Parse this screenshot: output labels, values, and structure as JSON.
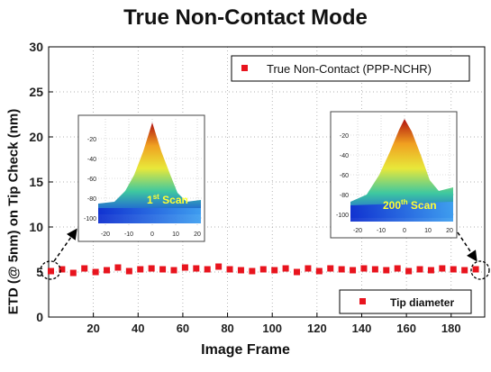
{
  "chart_data": {
    "type": "scatter",
    "title": "True Non-Contact Mode",
    "xlabel": "Image Frame",
    "ylabel": "ETD (@ 5nm) on Tip Check (nm)",
    "xlim": [
      0,
      195
    ],
    "ylim": [
      0,
      30
    ],
    "xticks": [
      20,
      40,
      60,
      80,
      100,
      120,
      140,
      160,
      180
    ],
    "yticks": [
      0,
      5,
      10,
      15,
      20,
      25,
      30
    ],
    "grid": true,
    "top_legend": "True Non-Contact (PPP-NCHR)",
    "series": [
      {
        "name": "Tip diameter",
        "color": "#e8141e",
        "x": [
          1,
          6,
          11,
          16,
          21,
          26,
          31,
          36,
          41,
          46,
          51,
          56,
          61,
          66,
          71,
          76,
          81,
          86,
          91,
          96,
          101,
          106,
          111,
          116,
          121,
          126,
          131,
          136,
          141,
          146,
          151,
          156,
          161,
          166,
          171,
          176,
          181,
          186,
          191
        ],
        "y": [
          5.1,
          5.3,
          4.9,
          5.4,
          5.0,
          5.2,
          5.5,
          5.1,
          5.3,
          5.4,
          5.3,
          5.2,
          5.5,
          5.4,
          5.3,
          5.6,
          5.3,
          5.2,
          5.1,
          5.3,
          5.2,
          5.4,
          5.0,
          5.4,
          5.1,
          5.4,
          5.3,
          5.2,
          5.4,
          5.3,
          5.2,
          5.4,
          5.1,
          5.3,
          5.2,
          5.4,
          5.3,
          5.2,
          5.3
        ]
      }
    ],
    "insets": [
      {
        "label_main": "1",
        "label_sup": "st",
        "label_tail": " Scan",
        "xticks": [
          "-20",
          "-10",
          "0",
          "10",
          "20"
        ],
        "yticks": [
          "-20",
          "-40",
          "-60",
          "-80",
          "-100"
        ]
      },
      {
        "label_main": "200",
        "label_sup": "th",
        "label_tail": " Scan",
        "xticks": [
          "-20",
          "-10",
          "0",
          "10",
          "20"
        ],
        "yticks": [
          "-20",
          "-40",
          "-60",
          "-80",
          "-100"
        ]
      }
    ]
  }
}
